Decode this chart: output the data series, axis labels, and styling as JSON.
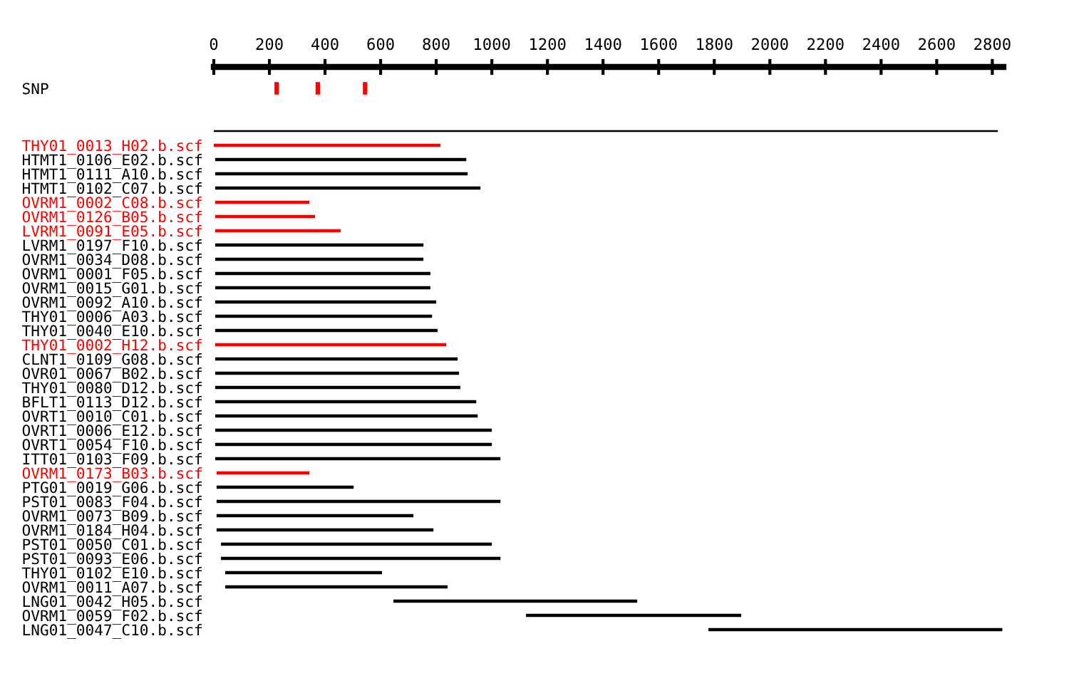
{
  "chart_data": {
    "type": "bar",
    "orientation": "horizontal",
    "categories": [
      "SNP",
      null,
      null,
      null,
      "THY01_0013_H02.b.scf",
      "HTMT1_0106_E02.b.scf",
      "HTMT1_0111_A10.b.scf",
      "HTMT1_0102_C07.b.scf",
      "OVRM1_0002_C08.b.scf",
      "OVRM1_0126_B05.b.scf",
      "LVRM1_0091_E05.b.scf",
      "LVRM1_0197_F10.b.scf",
      "OVRM1_0034_D08.b.scf",
      "OVRM1_0001_F05.b.scf",
      "OVRM1_0015_G01.b.scf",
      "OVRM1_0092_A10.b.scf",
      "THY01_0006_A03.b.scf",
      "THY01_0040_E10.b.scf",
      "THY01_0002_H12.b.scf",
      "CLNT1_0109_G08.b.scf",
      "OVR01_0067_B02.b.scf",
      "THY01_0080_D12.b.scf",
      "BFLT1_0113_D12.b.scf",
      "OVRT1_0010_C01.b.scf",
      "OVRT1_0006_E12.b.scf",
      "OVRT1_0054_F10.b.scf",
      "ITT01_0103_F09.b.scf",
      "OVRM1_0173_B03.b.scf",
      "PTG01_0019_G06.b.scf",
      "PST01_0083_F04.b.scf",
      "OVRM1_0073_B09.b.scf",
      "OVRM1_0184_H04.b.scf",
      "PST01_0050_C01.b.scf",
      "PST01_0093_E06.b.scf",
      "THY01_0102_E10.b.scf",
      "OVRM1_0011_A07.b.scf",
      "LNG01_0042_H05.b.scf",
      "OVRM1_0059_F02.b.scf",
      "LNG01_0047_C10.b.scf"
    ],
    "series": [
      {
        "base": [
          null,
          null,
          null,
          0,
          0,
          5,
          5,
          5,
          5,
          5,
          5,
          5,
          5,
          5,
          5,
          5,
          5,
          5,
          5,
          5,
          5,
          5,
          5,
          5,
          5,
          5,
          5,
          10,
          10,
          10,
          10,
          10,
          26,
          26,
          41,
          41,
          646,
          1123,
          1779
        ],
        "values": [
          null,
          null,
          null,
          2820,
          815,
          903,
          908,
          954,
          339,
          359,
          451,
          749,
          749,
          774,
          774,
          795,
          780,
          800,
          831,
          872,
          877,
          882,
          939,
          944,
          995,
          995,
          1026,
          334,
          493,
          1021,
          708,
          780,
          974,
          1005,
          564,
          800,
          877,
          774,
          1057
        ],
        "colors": [
          null,
          null,
          null,
          "#000000",
          "#ff0000",
          "#000000",
          "#000000",
          "#000000",
          "#ff0000",
          "#ff0000",
          "#ff0000",
          "#000000",
          "#000000",
          "#000000",
          "#000000",
          "#000000",
          "#000000",
          "#000000",
          "#ff0000",
          "#000000",
          "#000000",
          "#000000",
          "#000000",
          "#000000",
          "#000000",
          "#000000",
          "#000000",
          "#ff0000",
          "#000000",
          "#000000",
          "#000000",
          "#000000",
          "#000000",
          "#000000",
          "#000000",
          "#000000",
          "#000000",
          "#000000",
          "#000000"
        ]
      },
      {
        "type": "scatter",
        "color": "#ff0000",
        "values": [
          226,
          null,
          null,
          null,
          null,
          null,
          null,
          null,
          null,
          null,
          null,
          null,
          null,
          null,
          null,
          null,
          null,
          null,
          null,
          null,
          null,
          null,
          null,
          null,
          null,
          null,
          null,
          null,
          null,
          null,
          null,
          null,
          null,
          null,
          null,
          null,
          null,
          null,
          null
        ]
      },
      {
        "type": "scatter",
        "color": "#ff0000",
        "values": [
          374,
          null,
          null,
          null,
          null,
          null,
          null,
          null,
          null,
          null,
          null,
          null,
          null,
          null,
          null,
          null,
          null,
          null,
          null,
          null,
          null,
          null,
          null,
          null,
          null,
          null,
          null,
          null,
          null,
          null,
          null,
          null,
          null,
          null,
          null,
          null,
          null,
          null,
          null
        ]
      },
      {
        "type": "scatter",
        "color": "#ff0000",
        "values": [
          544,
          null,
          null,
          null,
          null,
          null,
          null,
          null,
          null,
          null,
          null,
          null,
          null,
          null,
          null,
          null,
          null,
          null,
          null,
          null,
          null,
          null,
          null,
          null,
          null,
          null,
          null,
          null,
          null,
          null,
          null,
          null,
          null,
          null,
          null,
          null,
          null,
          null,
          null
        ]
      }
    ],
    "xlim": [
      0,
      2840
    ],
    "xticks": [
      0,
      200,
      400,
      600,
      800,
      1000,
      1200,
      1400,
      1600,
      1800,
      2000,
      2200,
      2400,
      2600,
      2800
    ],
    "grid": false,
    "legend": false
  }
}
